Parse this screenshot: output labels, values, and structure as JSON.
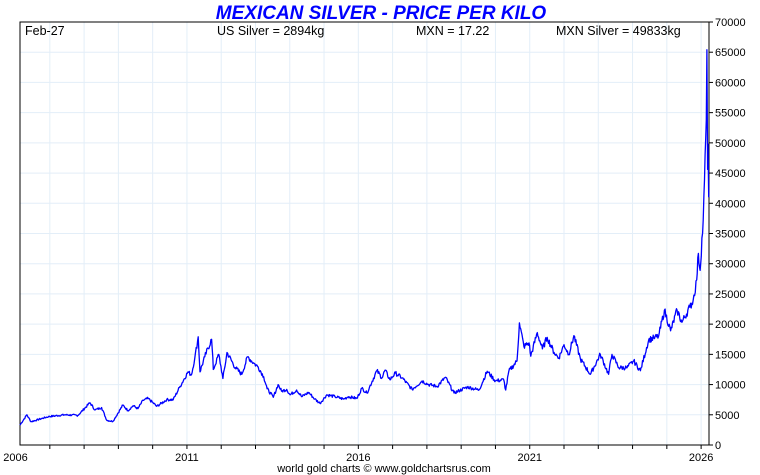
{
  "chart_data": {
    "type": "line",
    "title": "MEXICAN SILVER - PRICE PER KILO",
    "header": {
      "date": "Feb-27",
      "us_silver": "US Silver = 2894kg",
      "mxn_rate": "MXN = 17.22",
      "mxn_silver": "MXN Silver = 49833kg"
    },
    "footer": "world gold charts © www.goldchartsrus.com",
    "xlabel": "",
    "ylabel": "",
    "xlim": [
      2006.13,
      2026.23
    ],
    "ylim": [
      0,
      70000
    ],
    "x_tick_labels": [
      "2006",
      "2011",
      "2016",
      "2021",
      "2026"
    ],
    "y_tick_labels": [
      "0",
      "5000",
      "10000",
      "15000",
      "20000",
      "25000",
      "30000",
      "35000",
      "40000",
      "45000",
      "50000",
      "55000",
      "60000",
      "65000",
      "70000"
    ],
    "grid": true,
    "line_color": "#0000ff",
    "series": [
      {
        "name": "MXN Silver per kilo",
        "x": [
          2006.13,
          2006.33,
          2006.45,
          2006.96,
          2007.44,
          2007.82,
          2008.17,
          2008.32,
          2008.51,
          2008.66,
          2008.84,
          2009.13,
          2009.28,
          2009.43,
          2009.57,
          2009.72,
          2009.87,
          2010.12,
          2010.41,
          2010.6,
          2010.8,
          2011.03,
          2011.13,
          2011.23,
          2011.33,
          2011.38,
          2011.52,
          2011.72,
          2011.77,
          2011.93,
          2012.05,
          2012.17,
          2012.41,
          2012.6,
          2012.77,
          2012.94,
          2013.08,
          2013.24,
          2013.34,
          2013.52,
          2013.66,
          2013.76,
          2013.91,
          2014.01,
          2014.2,
          2014.35,
          2014.55,
          2014.73,
          2014.88,
          2015.08,
          2015.32,
          2015.57,
          2015.71,
          2015.96,
          2016.1,
          2016.25,
          2016.54,
          2016.69,
          2016.78,
          2016.92,
          2017.08,
          2017.28,
          2017.57,
          2017.86,
          2018.05,
          2018.3,
          2018.54,
          2018.79,
          2019.18,
          2019.52,
          2019.76,
          2020.0,
          2020.24,
          2020.3,
          2020.39,
          2020.63,
          2020.7,
          2020.83,
          2020.98,
          2021.03,
          2021.22,
          2021.37,
          2021.51,
          2021.71,
          2021.85,
          2022.0,
          2022.14,
          2022.29,
          2022.48,
          2022.77,
          2023.06,
          2023.3,
          2023.4,
          2023.6,
          2023.84,
          2024.03,
          2024.23,
          2024.47,
          2024.62,
          2024.76,
          2024.93,
          2025.11,
          2025.3,
          2025.44,
          2025.67,
          2025.77,
          2025.87,
          2025.92,
          2025.97,
          2026.06,
          2026.1,
          2026.15,
          2026.17,
          2026.19,
          2026.2,
          2026.22
        ],
        "y": [
          3300,
          5000,
          3860,
          4700,
          5000,
          4900,
          7000,
          5800,
          6200,
          4100,
          3900,
          6600,
          5700,
          6500,
          6000,
          7400,
          7700,
          6400,
          7500,
          7500,
          9700,
          12100,
          11600,
          14400,
          17900,
          12100,
          14600,
          17500,
          12500,
          15000,
          11000,
          15300,
          12800,
          11700,
          14600,
          13600,
          12900,
          11300,
          9300,
          7900,
          10000,
          8900,
          9200,
          8300,
          9100,
          8000,
          8700,
          7600,
          6900,
          8300,
          8000,
          7600,
          8000,
          7700,
          9400,
          8600,
          12300,
          11100,
          12400,
          10800,
          11900,
          11100,
          9200,
          10600,
          10000,
          9700,
          11200,
          8600,
          9600,
          9100,
          12200,
          10600,
          10800,
          9100,
          12200,
          13900,
          20200,
          16300,
          16900,
          14700,
          18600,
          15900,
          17800,
          15300,
          14400,
          16600,
          15000,
          18100,
          14200,
          11700,
          15000,
          11700,
          15000,
          12800,
          12800,
          13900,
          12300,
          17400,
          17700,
          18000,
          22300,
          18900,
          22300,
          20300,
          22800,
          24000,
          27300,
          31700,
          28900,
          37200,
          43900,
          53800,
          65400,
          45600,
          49800,
          41000
        ]
      }
    ]
  }
}
